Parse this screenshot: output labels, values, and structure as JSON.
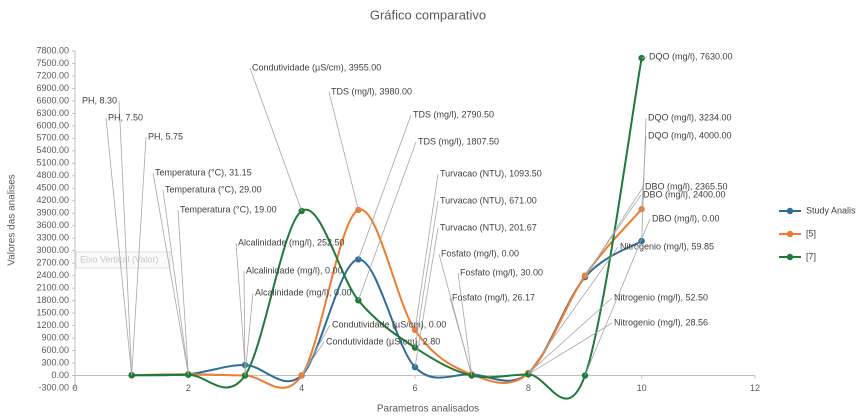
{
  "chart_data": {
    "type": "line",
    "title": "Gráfico comparativo",
    "x_label": "Parametros analisados",
    "y_label": "Valores  das analises",
    "tooltip": "Eixo Vertical (Valor)",
    "x": [
      1,
      2,
      3,
      4,
      5,
      6,
      7,
      8,
      9,
      10
    ],
    "xlim": [
      0,
      12
    ],
    "xticks": [
      0,
      2,
      4,
      6,
      8,
      10,
      12
    ],
    "ylim": [
      -300,
      7800
    ],
    "yticks": [
      {
        "value": -300,
        "label": "-300.00"
      },
      {
        "value": 0,
        "label": "0.00"
      },
      {
        "value": 300,
        "label": "300.00"
      },
      {
        "value": 600,
        "label": "600.00"
      },
      {
        "value": 900,
        "label": "900.00"
      },
      {
        "value": 1200,
        "label": "1200.00"
      },
      {
        "value": 1500,
        "label": "1500.00"
      },
      {
        "value": 1800,
        "label": "1800.00"
      },
      {
        "value": 2100,
        "label": "2100.00"
      },
      {
        "value": 2400,
        "label": "2400.00"
      },
      {
        "value": 2700,
        "label": "2700.00"
      },
      {
        "value": 3000,
        "label": "3000.00"
      },
      {
        "value": 3300,
        "label": "3300.00"
      },
      {
        "value": 3600,
        "label": "3600.00"
      },
      {
        "value": 3900,
        "label": "3900.00"
      },
      {
        "value": 4200,
        "label": "4200.00"
      },
      {
        "value": 4500,
        "label": "4500.00"
      },
      {
        "value": 4800,
        "label": "4800.00"
      },
      {
        "value": 5100,
        "label": "5100.00"
      },
      {
        "value": 5400,
        "label": "5400.00"
      },
      {
        "value": 5700,
        "label": "5700.00"
      },
      {
        "value": 6000,
        "label": "6000.00"
      },
      {
        "value": 6300,
        "label": "6300.00"
      },
      {
        "value": 6600,
        "label": "6600.00"
      },
      {
        "value": 6900,
        "label": "6900.00"
      },
      {
        "value": 7200,
        "label": "7200.00"
      },
      {
        "value": 7500,
        "label": "7500.00"
      },
      {
        "value": 7800,
        "label": "7800.00"
      }
    ],
    "grid": false,
    "legend": "right",
    "series": [
      {
        "name": "Study Analisy",
        "color": "#2e6c99",
        "values": [
          8.3,
          31.15,
          252.5,
          2.8,
          2790.5,
          201.67,
          30.0,
          59.85,
          2365.5,
          3234.0
        ],
        "value_labels": [
          "PH, 8.30",
          "Temperatura (°C), 31.15",
          "Alcalinidade (mg/l), 252.50",
          "Condutividade (µS/cm), 2.80",
          "TDS (mg/l), 2790.50",
          "Turvacao (NTU), 201.67",
          "Fosfato (mg/l), 30.00",
          "Nitrogenio (mg/l), 59.85",
          "DBO (mg/l), 2365.50",
          "DQO (mg/l), 3234.00"
        ]
      },
      {
        "name": "[5]",
        "color": "#ed7d31",
        "values": [
          7.5,
          29.0,
          0.0,
          0.0,
          3980.0,
          1093.5,
          26.17,
          52.5,
          2400.0,
          4000.0
        ],
        "value_labels": [
          "PH, 7.50",
          "Temperatura (°C), 29.00",
          "Alcalinidade (mg/l), 0.00",
          "Condutividade (µS/cm), 0.00",
          "TDS (mg/l), 3980.00",
          "Turvacao (NTU), 1093.50",
          "Fosfato (mg/l), 26.17",
          "Nitrogenio (mg/l), 52.50",
          "DBO (mg/l), 2400.00",
          "DQO (mg/l), 4000.00"
        ]
      },
      {
        "name": "[7]",
        "color": "#1f7a3a",
        "values": [
          5.75,
          19.0,
          0.0,
          3955.0,
          1807.5,
          671.0,
          0.0,
          28.56,
          0.0,
          7630.0
        ],
        "value_labels": [
          "PH, 5.75",
          "Temperatura (°C), 19.00",
          "Alcalinidade (mg/l), 0.00",
          "Condutividade (µS/cm), 3955.00",
          "TDS (mg/l), 1807.50",
          "Turvacao (NTU), 671.00",
          "Fosfato (mg/l), 0.00",
          "Nitrogenio (mg/l), 28.56",
          "DBO (mg/l), 0.00",
          "DQO (mg/l), 7630.00"
        ]
      }
    ]
  }
}
